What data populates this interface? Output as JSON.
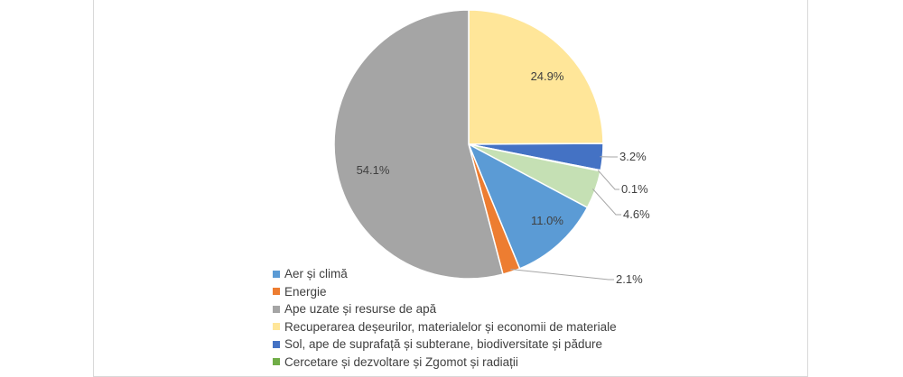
{
  "chart_data": {
    "type": "pie",
    "title": "",
    "start_angle_deg": 0,
    "direction": "clockwise",
    "legend_position": "bottom",
    "series": [
      {
        "name": "",
        "slices": [
          {
            "category": "Recuperarea deșeurilor, materialelor și economii de materiale",
            "value": 24.9,
            "label": "24.9%",
            "color": "#ffe699"
          },
          {
            "category": "Sol, ape de suprafață și subterane, biodiversitate și pădure",
            "value": 3.2,
            "label": "3.2%",
            "color": "#4472c4"
          },
          {
            "category": "Cercetare și dezvoltare și Zgomot și radiații",
            "value": 0.1,
            "label": "0.1%",
            "color": "#70ad47"
          },
          {
            "category": "",
            "value": 4.6,
            "label": "4.6%",
            "color": "#c5e0b4"
          },
          {
            "category": "Aer și climă",
            "value": 11.0,
            "label": "11.0%",
            "color": "#5b9bd5"
          },
          {
            "category": "Energie",
            "value": 2.1,
            "label": "2.1%",
            "color": "#ed7d31"
          },
          {
            "category": "Ape uzate și resurse de apă",
            "value": 54.1,
            "label": "54.1%",
            "color": "#a5a5a5"
          }
        ]
      }
    ],
    "legend": [
      {
        "label": "Aer și climă",
        "color": "#5b9bd5"
      },
      {
        "label": "Energie",
        "color": "#ed7d31"
      },
      {
        "label": "Ape uzate și resurse de apă",
        "color": "#a5a5a5"
      },
      {
        "label": "Recuperarea deșeurilor, materialelor și economii de materiale",
        "color": "#ffe699"
      },
      {
        "label": "Sol, ape de suprafață și subterane, biodiversitate și pădure",
        "color": "#4472c4"
      },
      {
        "label": "Cercetare și dezvoltare și Zgomot și radiații",
        "color": "#70ad47"
      }
    ]
  }
}
